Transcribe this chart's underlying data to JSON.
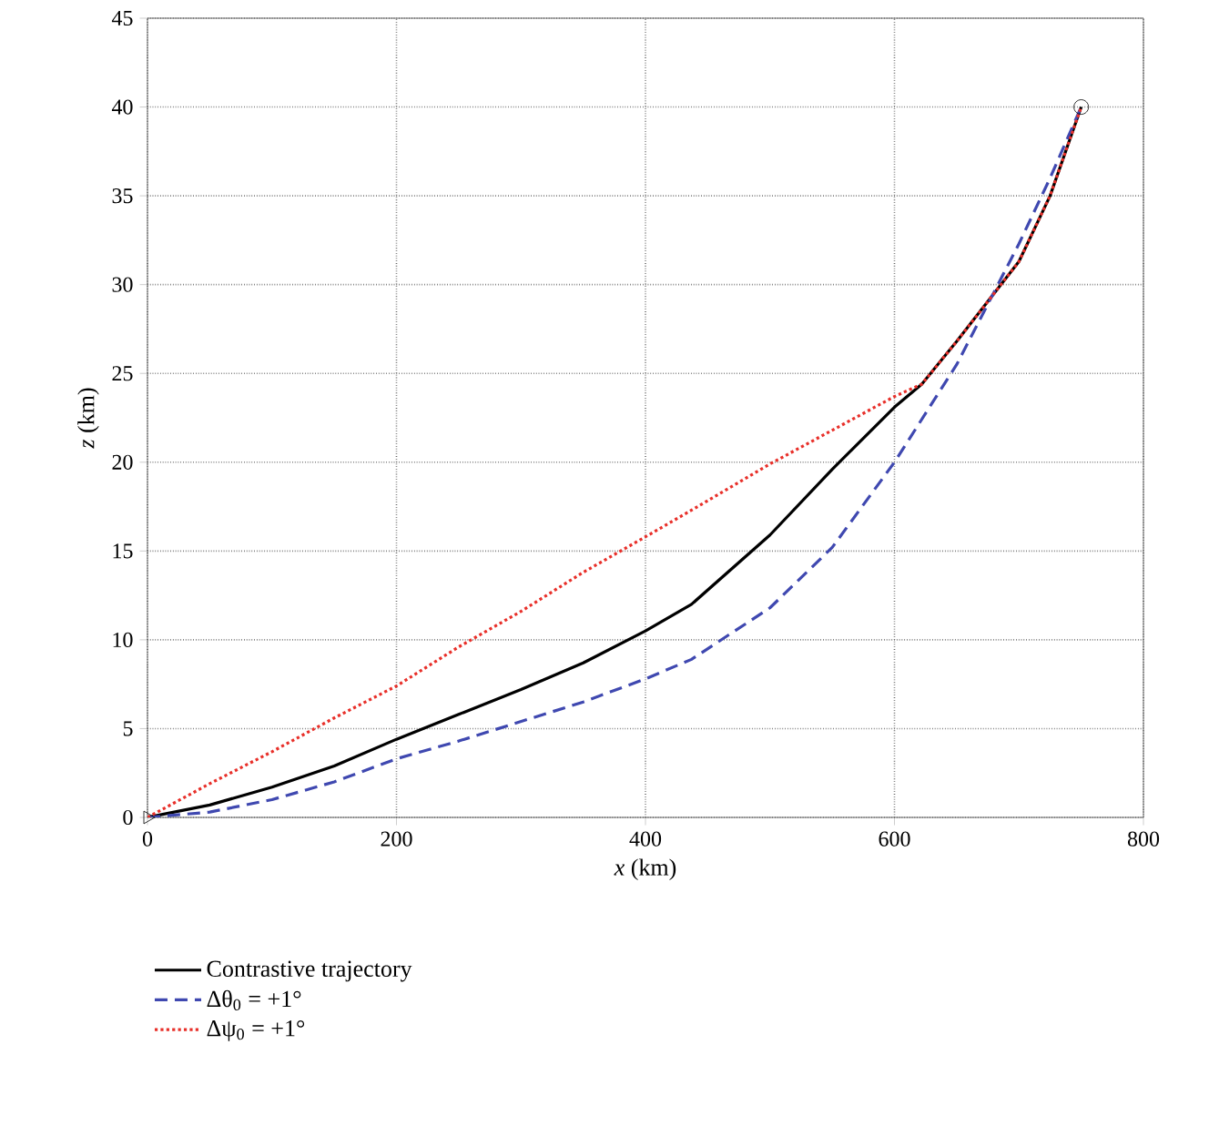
{
  "chart_data": {
    "type": "line",
    "xlabel": "*x* (km)",
    "ylabel": "*z* (km)",
    "xlim": [
      0,
      800
    ],
    "ylim": [
      0,
      45
    ],
    "xticks": [
      0,
      200,
      400,
      600,
      800
    ],
    "yticks": [
      0,
      5,
      10,
      15,
      20,
      25,
      30,
      35,
      40,
      45
    ],
    "grid": true,
    "legend": "bottom",
    "series": [
      {
        "name": "Contrastive trajectory",
        "color": "#000000",
        "line_style": "solid",
        "x": [
          0,
          50,
          100,
          150,
          200,
          250,
          300,
          350,
          400,
          437,
          500,
          550,
          600,
          622,
          650,
          700,
          725,
          750
        ],
        "values": [
          0,
          0.7,
          1.7,
          2.9,
          4.4,
          5.8,
          7.2,
          8.7,
          10.5,
          12.0,
          15.9,
          19.6,
          23.1,
          24.4,
          26.8,
          31.3,
          35,
          40
        ]
      },
      {
        "name": "Δθ$_{0}$ = +1°",
        "color": "#3f48b0",
        "line_style": "dashed",
        "x": [
          0,
          50,
          100,
          150,
          200,
          250,
          300,
          350,
          400,
          437,
          500,
          550,
          600,
          650,
          700,
          725,
          750
        ],
        "values": [
          0,
          0.3,
          1.0,
          2.0,
          3.3,
          4.3,
          5.4,
          6.5,
          7.8,
          8.9,
          11.8,
          15.2,
          20.0,
          25.5,
          32.3,
          36,
          40
        ]
      },
      {
        "name": "Δψ$_{0}$ = +1°",
        "color": "#e8302a",
        "line_style": "dotted",
        "x": [
          0,
          50,
          100,
          150,
          200,
          250,
          300,
          350,
          400,
          437,
          500,
          550,
          600,
          622,
          650,
          700,
          725,
          750
        ],
        "values": [
          0,
          1.9,
          3.7,
          5.6,
          7.4,
          9.6,
          11.6,
          13.8,
          15.8,
          17.3,
          19.9,
          21.8,
          23.7,
          24.4,
          26.8,
          31.3,
          35,
          40
        ]
      },
      {
        "type": "scatter",
        "color": "#000000",
        "marker": "triangle",
        "x": [
          0
        ],
        "values": [
          0
        ]
      },
      {
        "type": "scatter",
        "color": "#000000",
        "marker": "circle",
        "x": [
          750
        ],
        "values": [
          40
        ]
      }
    ]
  }
}
